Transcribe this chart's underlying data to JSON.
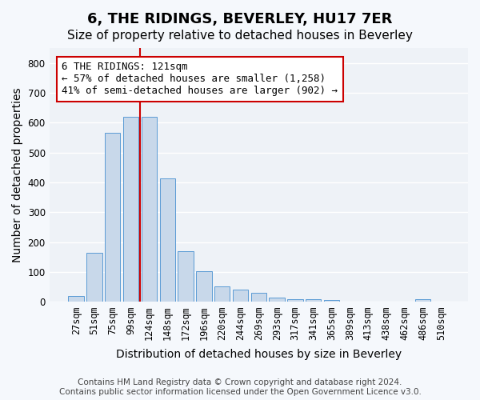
{
  "title": "6, THE RIDINGS, BEVERLEY, HU17 7ER",
  "subtitle": "Size of property relative to detached houses in Beverley",
  "xlabel": "Distribution of detached houses by size in Beverley",
  "ylabel": "Number of detached properties",
  "bar_color": "#c8d8ea",
  "bar_edge_color": "#5b9bd5",
  "background_color": "#eef2f7",
  "grid_color": "#ffffff",
  "categories": [
    "27sqm",
    "51sqm",
    "75sqm",
    "99sqm",
    "124sqm",
    "148sqm",
    "172sqm",
    "196sqm",
    "220sqm",
    "244sqm",
    "269sqm",
    "293sqm",
    "317sqm",
    "341sqm",
    "365sqm",
    "389sqm",
    "413sqm",
    "438sqm",
    "462sqm",
    "486sqm",
    "510sqm"
  ],
  "values": [
    20,
    163,
    565,
    620,
    620,
    413,
    170,
    103,
    52,
    40,
    30,
    15,
    10,
    8,
    5,
    0,
    0,
    0,
    0,
    8,
    0
  ],
  "marker_label": "6 THE RIDINGS: 121sqm",
  "pct_smaller": "57% of detached houses are smaller (1,258)",
  "pct_larger": "41% of semi-detached houses are larger (902)",
  "annotation_box_color": "#ffffff",
  "annotation_border_color": "#cc0000",
  "vline_color": "#cc0000",
  "ylim": [
    0,
    850
  ],
  "yticks": [
    0,
    100,
    200,
    300,
    400,
    500,
    600,
    700,
    800
  ],
  "footnote": "Contains HM Land Registry data © Crown copyright and database right 2024.\nContains public sector information licensed under the Open Government Licence v3.0.",
  "title_fontsize": 13,
  "subtitle_fontsize": 11,
  "xlabel_fontsize": 10,
  "ylabel_fontsize": 10,
  "tick_fontsize": 8.5,
  "annot_fontsize": 9,
  "footnote_fontsize": 7.5
}
